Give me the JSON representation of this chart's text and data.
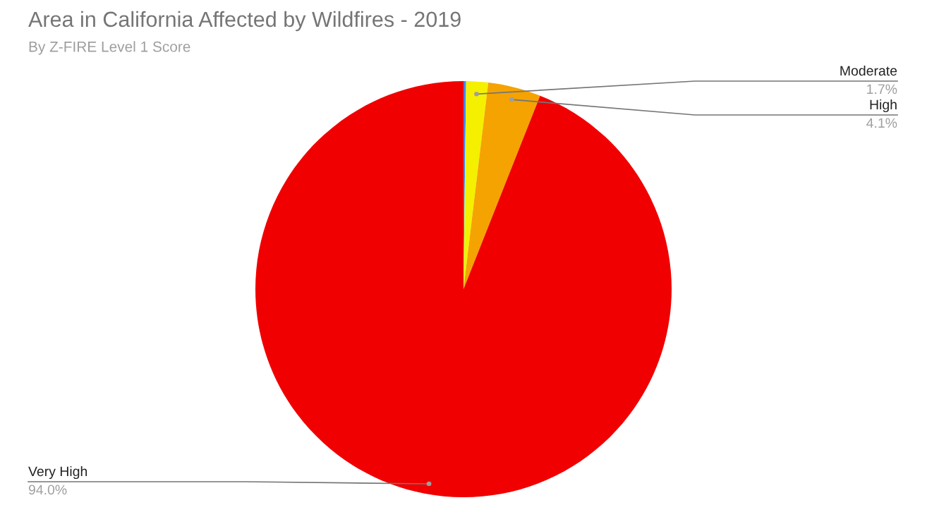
{
  "chart_data": {
    "type": "pie",
    "title": "Area in California Affected by Wildfires - 2019",
    "subtitle": "By Z-FIRE Level 1 Score",
    "categories": [
      null,
      "Moderate",
      "High",
      "Very High"
    ],
    "values": [
      0.2,
      1.7,
      4.1,
      94.0
    ],
    "colors": [
      "#4285f4",
      "#f4f000",
      "#f5a300",
      "#f00000"
    ],
    "value_labels": [
      null,
      "1.7%",
      "4.1%",
      "94.0%"
    ],
    "legend": false
  }
}
